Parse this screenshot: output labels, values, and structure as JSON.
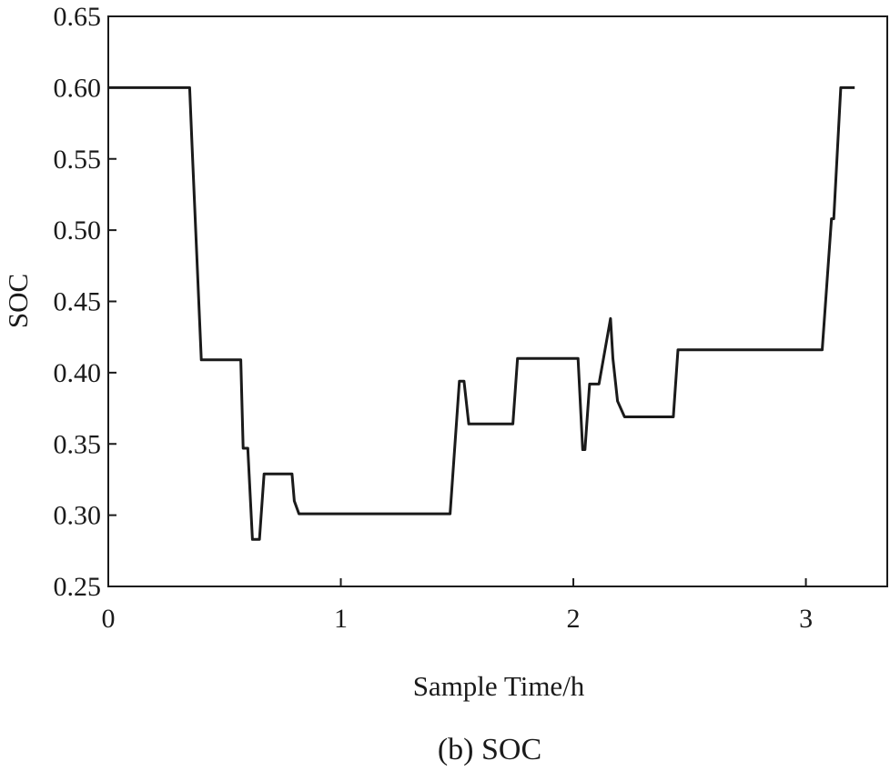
{
  "chart_data": {
    "type": "line",
    "xlabel": "Sample Time/h",
    "ylabel": "SOC",
    "caption": "(b) SOC",
    "xlim": [
      0,
      3.35
    ],
    "ylim": [
      0.25,
      0.65
    ],
    "x_ticks": [
      0,
      1,
      2,
      3
    ],
    "x_tick_labels": [
      "0",
      "1",
      "2",
      "3"
    ],
    "y_ticks": [
      0.25,
      0.3,
      0.35,
      0.4,
      0.45,
      0.5,
      0.55,
      0.6,
      0.65
    ],
    "y_tick_labels": [
      "0.25",
      "0.30",
      "0.35",
      "0.40",
      "0.45",
      "0.50",
      "0.55",
      "0.60",
      "0.65"
    ],
    "grid": false,
    "line_color": "#1a1a1a",
    "series": [
      {
        "x": [
          0,
          0.35,
          0.36,
          0.4,
          0.57,
          0.58,
          0.6,
          0.62,
          0.65,
          0.67,
          0.79,
          0.8,
          0.82,
          1.47,
          1.51,
          1.53,
          1.55,
          1.74,
          1.76,
          2.02,
          2.04,
          2.05,
          2.07,
          2.11,
          2.16,
          2.17,
          2.19,
          2.22,
          2.43,
          2.45,
          3.07,
          3.11,
          3.12,
          3.15,
          3.21
        ],
        "y": [
          0.6,
          0.6,
          0.56,
          0.409,
          0.409,
          0.347,
          0.347,
          0.283,
          0.283,
          0.329,
          0.329,
          0.31,
          0.301,
          0.301,
          0.394,
          0.394,
          0.364,
          0.364,
          0.41,
          0.41,
          0.346,
          0.346,
          0.392,
          0.392,
          0.438,
          0.41,
          0.38,
          0.369,
          0.369,
          0.416,
          0.416,
          0.508,
          0.508,
          0.6,
          0.6
        ]
      }
    ]
  }
}
